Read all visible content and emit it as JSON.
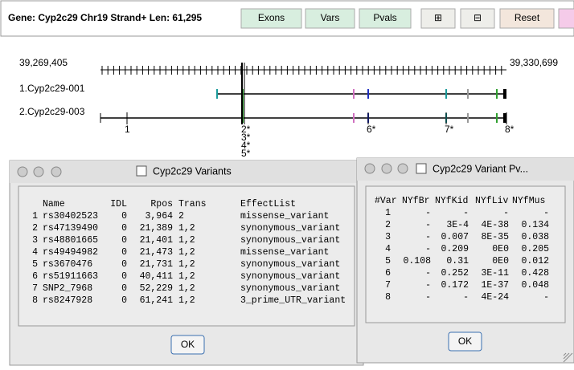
{
  "header": {
    "gene_info": "Gene: Cyp2c29  Chr19 Strand+ Len: 61,295",
    "buttons": [
      "Exons",
      "Vars",
      "Pvals",
      "⊞",
      "⊟",
      "Reset"
    ]
  },
  "track": {
    "left_coord": "39,269,405",
    "right_coord": "39,330,699",
    "transcripts": [
      "1.Cyp2c29-001",
      "2.Cyp2c29-003"
    ],
    "variant_markers": [
      "1",
      "2*",
      "3*",
      "4*",
      "5*",
      "6*",
      "7*",
      "8*"
    ]
  },
  "variants_dialog": {
    "title": "Cyp2c29 Variants",
    "columns": [
      "Name",
      "IDL",
      "Rpos",
      "Trans",
      "EffectList"
    ],
    "rows": [
      [
        "1",
        "rs30402523",
        "0",
        "3,964",
        "2",
        "missense_variant"
      ],
      [
        "2",
        "rs47139490",
        "0",
        "21,389",
        "1,2",
        "synonymous_variant"
      ],
      [
        "3",
        "rs48801665",
        "0",
        "21,401",
        "1,2",
        "synonymous_variant"
      ],
      [
        "4",
        "rs49494982",
        "0",
        "21,473",
        "1,2",
        "missense_variant"
      ],
      [
        "5",
        "rs3670476",
        "0",
        "21,731",
        "1,2",
        "synonymous_variant"
      ],
      [
        "6",
        "rs51911663",
        "0",
        "40,411",
        "1,2",
        "synonymous_variant"
      ],
      [
        "7",
        "SNP2_7968",
        "0",
        "52,229",
        "1,2",
        "synonymous_variant"
      ],
      [
        "8",
        "rs8247928",
        "0",
        "61,241",
        "1,2",
        "3_prime_UTR_variant"
      ]
    ],
    "ok": "OK"
  },
  "pvals_dialog": {
    "title": "Cyp2c29 Variant Pv...",
    "columns": [
      "#Var",
      "NYfBr",
      "NYfKid",
      "NYfLiv",
      "NYfMus"
    ],
    "rows": [
      [
        "1",
        "-",
        "-",
        "-",
        "-"
      ],
      [
        "2",
        "-",
        "3E-4",
        "4E-38",
        "0.134"
      ],
      [
        "3",
        "-",
        "0.007",
        "8E-35",
        "0.038"
      ],
      [
        "4",
        "-",
        "0.209",
        "0E0",
        "0.205"
      ],
      [
        "5",
        "0.108",
        "0.31",
        "0E0",
        "0.012"
      ],
      [
        "6",
        "-",
        "0.252",
        "3E-11",
        "0.428"
      ],
      [
        "7",
        "-",
        "0.172",
        "1E-37",
        "0.048"
      ],
      [
        "8",
        "-",
        "-",
        "4E-24",
        "-"
      ]
    ],
    "ok": "OK"
  }
}
